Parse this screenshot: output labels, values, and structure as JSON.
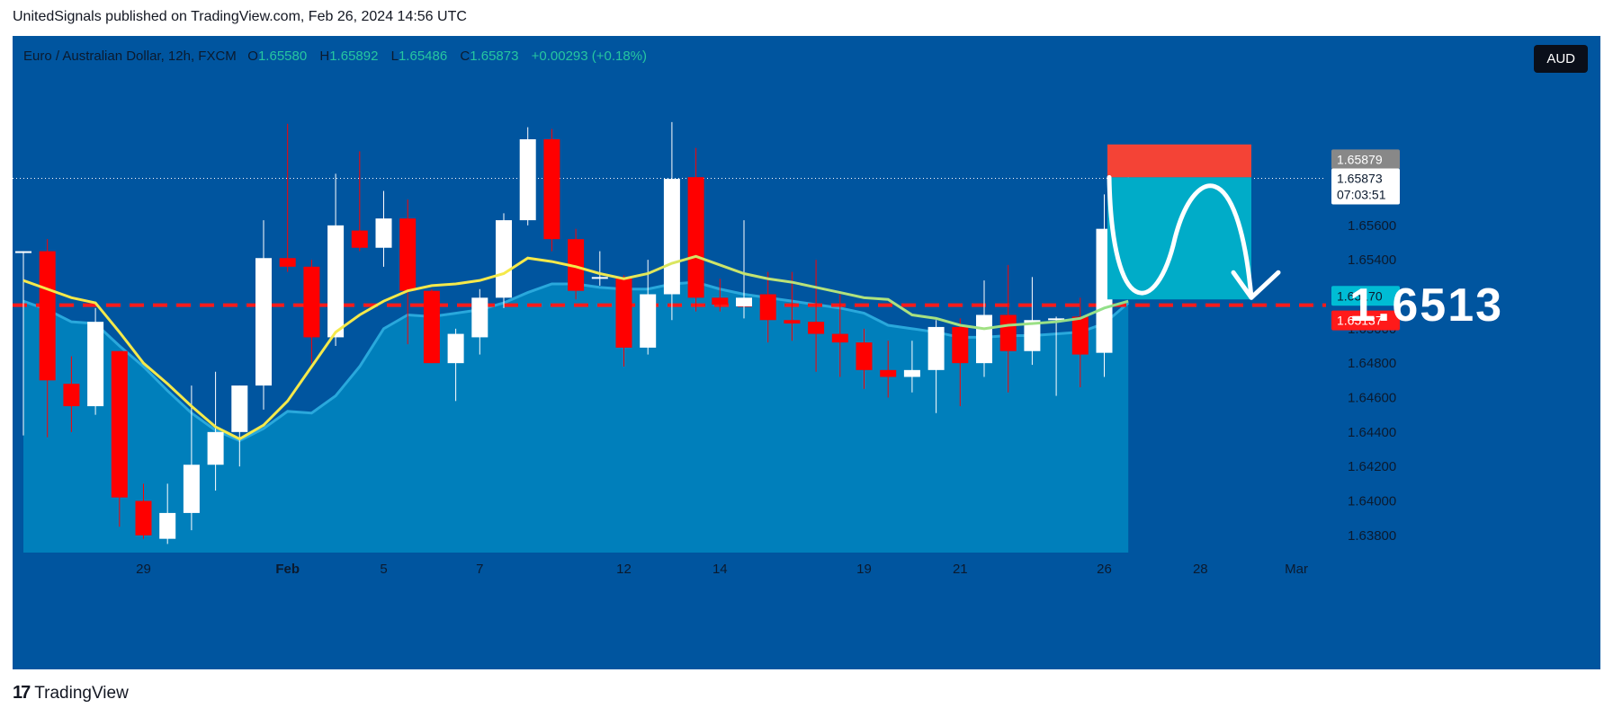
{
  "header": {
    "text": "UnitedSignals published on TradingView.com, Feb 26, 2024 14:56 UTC"
  },
  "legend": {
    "symbol": "Euro / Australian Dollar, 12h, FXCM",
    "o_label": "O",
    "o_value": "1.65580",
    "h_label": "H",
    "h_value": "1.65892",
    "l_label": "L",
    "l_value": "1.65486",
    "c_label": "C",
    "c_value": "1.65873",
    "change": "+0.00293 (+0.18%)"
  },
  "currency_button": "AUD",
  "target_label": "1.6513",
  "footer": {
    "brand": "TradingView",
    "logo": "17"
  },
  "colors": {
    "background": "#00559f",
    "area_fill": "#0087c0",
    "up_candle": "#ffffff",
    "down_candle": "#ff0000",
    "ma_line": "#f5e94a",
    "stop_zone": "#f44336",
    "profit_zone": "#00acc8",
    "dashed_level": "#ff1a1a"
  },
  "chart_data": {
    "type": "candlestick",
    "title": "Euro / Australian Dollar, 12h, FXCM",
    "ylim": [
      1.637,
      1.667
    ],
    "y_ticks": [
      "1.63800",
      "1.64000",
      "1.64200",
      "1.64400",
      "1.64600",
      "1.64800",
      "1.65000",
      "1.65400",
      "1.65600"
    ],
    "y_tick_values": [
      1.638,
      1.64,
      1.642,
      1.644,
      1.646,
      1.648,
      1.65,
      1.654,
      1.656
    ],
    "x_ticks": [
      "29",
      "Feb",
      "5",
      "7",
      "12",
      "14",
      "19",
      "21",
      "26",
      "28",
      "Mar"
    ],
    "x_tick_index": [
      5,
      11,
      15,
      19,
      25,
      29,
      35,
      39,
      45,
      49,
      53
    ],
    "price_tags": [
      {
        "label": "1.65879",
        "value": 1.65879,
        "bg": "#888888"
      },
      {
        "label": "1.65873",
        "sub": "07:03:51",
        "value": 1.65873,
        "bg": "#ffffff"
      },
      {
        "label": "1.65170",
        "value": 1.6517,
        "bg": "#00bcd4"
      },
      {
        "label": "1.65137",
        "value": 1.65137,
        "bg": "#ff1a1a"
      }
    ],
    "candles": [
      {
        "o": 1.6545,
        "h": 1.6545,
        "l": 1.6438,
        "c": 1.6545
      },
      {
        "o": 1.6545,
        "h": 1.6552,
        "l": 1.6437,
        "c": 1.647
      },
      {
        "o": 1.6468,
        "h": 1.6484,
        "l": 1.644,
        "c": 1.6455
      },
      {
        "o": 1.6455,
        "h": 1.6512,
        "l": 1.645,
        "c": 1.6504
      },
      {
        "o": 1.6487,
        "h": 1.6487,
        "l": 1.6385,
        "c": 1.6402
      },
      {
        "o": 1.64,
        "h": 1.641,
        "l": 1.6378,
        "c": 1.638
      },
      {
        "o": 1.6378,
        "h": 1.641,
        "l": 1.6375,
        "c": 1.6393
      },
      {
        "o": 1.6393,
        "h": 1.6467,
        "l": 1.6383,
        "c": 1.6421
      },
      {
        "o": 1.6421,
        "h": 1.6475,
        "l": 1.6406,
        "c": 1.644
      },
      {
        "o": 1.644,
        "h": 1.6467,
        "l": 1.642,
        "c": 1.6467
      },
      {
        "o": 1.6467,
        "h": 1.6563,
        "l": 1.6453,
        "c": 1.6541
      },
      {
        "o": 1.6541,
        "h": 1.6619,
        "l": 1.6533,
        "c": 1.6536
      },
      {
        "o": 1.6536,
        "h": 1.654,
        "l": 1.648,
        "c": 1.6495
      },
      {
        "o": 1.6495,
        "h": 1.659,
        "l": 1.649,
        "c": 1.656
      },
      {
        "o": 1.6557,
        "h": 1.6603,
        "l": 1.6545,
        "c": 1.6547
      },
      {
        "o": 1.6547,
        "h": 1.658,
        "l": 1.6536,
        "c": 1.6564
      },
      {
        "o": 1.6564,
        "h": 1.6575,
        "l": 1.6491,
        "c": 1.6522
      },
      {
        "o": 1.6522,
        "h": 1.6523,
        "l": 1.648,
        "c": 1.648
      },
      {
        "o": 1.648,
        "h": 1.65,
        "l": 1.6458,
        "c": 1.6497
      },
      {
        "o": 1.6495,
        "h": 1.6523,
        "l": 1.6485,
        "c": 1.6518
      },
      {
        "o": 1.6518,
        "h": 1.6567,
        "l": 1.6512,
        "c": 1.6563
      },
      {
        "o": 1.6563,
        "h": 1.6617,
        "l": 1.656,
        "c": 1.661
      },
      {
        "o": 1.661,
        "h": 1.6616,
        "l": 1.6545,
        "c": 1.6552
      },
      {
        "o": 1.6552,
        "h": 1.6558,
        "l": 1.6517,
        "c": 1.6522
      },
      {
        "o": 1.653,
        "h": 1.6545,
        "l": 1.6525,
        "c": 1.653
      },
      {
        "o": 1.653,
        "h": 1.6531,
        "l": 1.6478,
        "c": 1.6489
      },
      {
        "o": 1.6489,
        "h": 1.654,
        "l": 1.6485,
        "c": 1.652
      },
      {
        "o": 1.652,
        "h": 1.662,
        "l": 1.6505,
        "c": 1.6587
      },
      {
        "o": 1.6588,
        "h": 1.6605,
        "l": 1.651,
        "c": 1.6518
      },
      {
        "o": 1.6518,
        "h": 1.6529,
        "l": 1.651,
        "c": 1.6514
      },
      {
        "o": 1.6513,
        "h": 1.6563,
        "l": 1.6506,
        "c": 1.6518
      },
      {
        "o": 1.652,
        "h": 1.6533,
        "l": 1.6492,
        "c": 1.6505
      },
      {
        "o": 1.6505,
        "h": 1.6533,
        "l": 1.6493,
        "c": 1.6503
      },
      {
        "o": 1.6504,
        "h": 1.654,
        "l": 1.6475,
        "c": 1.6497
      },
      {
        "o": 1.6497,
        "h": 1.652,
        "l": 1.6472,
        "c": 1.6492
      },
      {
        "o": 1.6492,
        "h": 1.65,
        "l": 1.6465,
        "c": 1.6476
      },
      {
        "o": 1.6476,
        "h": 1.6493,
        "l": 1.646,
        "c": 1.6472
      },
      {
        "o": 1.6472,
        "h": 1.6493,
        "l": 1.6463,
        "c": 1.6476
      },
      {
        "o": 1.6476,
        "h": 1.6505,
        "l": 1.6451,
        "c": 1.6501
      },
      {
        "o": 1.6501,
        "h": 1.6506,
        "l": 1.6455,
        "c": 1.648
      },
      {
        "o": 1.648,
        "h": 1.6528,
        "l": 1.6472,
        "c": 1.6508
      },
      {
        "o": 1.6508,
        "h": 1.6537,
        "l": 1.6463,
        "c": 1.6487
      },
      {
        "o": 1.6487,
        "h": 1.653,
        "l": 1.6479,
        "c": 1.6505
      },
      {
        "o": 1.6505,
        "h": 1.6507,
        "l": 1.6461,
        "c": 1.6506
      },
      {
        "o": 1.6507,
        "h": 1.6518,
        "l": 1.6466,
        "c": 1.6485
      },
      {
        "o": 1.6486,
        "h": 1.6578,
        "l": 1.6472,
        "c": 1.6558
      },
      {
        "o": 1.6558,
        "h": 1.6589,
        "l": 1.6549,
        "c": 1.6587
      }
    ],
    "ma_line": [
      1.6528,
      1.6523,
      1.6518,
      1.6515,
      1.6498,
      1.648,
      1.6468,
      1.6455,
      1.6443,
      1.6436,
      1.6444,
      1.6458,
      1.6478,
      1.6498,
      1.6508,
      1.6516,
      1.6522,
      1.6525,
      1.6526,
      1.6528,
      1.6532,
      1.6541,
      1.6539,
      1.6536,
      1.6532,
      1.6529,
      1.6532,
      1.6538,
      1.6542,
      1.6537,
      1.6532,
      1.6529,
      1.6527,
      1.6524,
      1.6521,
      1.6518,
      1.6517,
      1.6508,
      1.6506,
      1.6502,
      1.65,
      1.6502,
      1.6503,
      1.6504,
      1.6506,
      1.6512,
      1.6516
    ],
    "ma_line_secondary": [
      1.6516,
      1.6511,
      1.6504,
      1.6503,
      1.649,
      1.6478,
      1.6464,
      1.6451,
      1.6441,
      1.6435,
      1.6442,
      1.6452,
      1.6451,
      1.6461,
      1.6478,
      1.65,
      1.6508,
      1.6507,
      1.6509,
      1.6511,
      1.6515,
      1.6521,
      1.6526,
      1.6526,
      1.6524,
      1.6523,
      1.6523,
      1.6526,
      1.6527,
      1.6523,
      1.652,
      1.6518,
      1.6516,
      1.6514,
      1.6512,
      1.6509,
      1.6502,
      1.65,
      1.6498,
      1.6495,
      1.6495,
      1.6496,
      1.6496,
      1.6497,
      1.6498,
      1.6503,
      1.6515
    ],
    "dashed_level": 1.65137,
    "position": {
      "entry": 1.65879,
      "stop": 1.6607,
      "target": 1.6517
    }
  }
}
